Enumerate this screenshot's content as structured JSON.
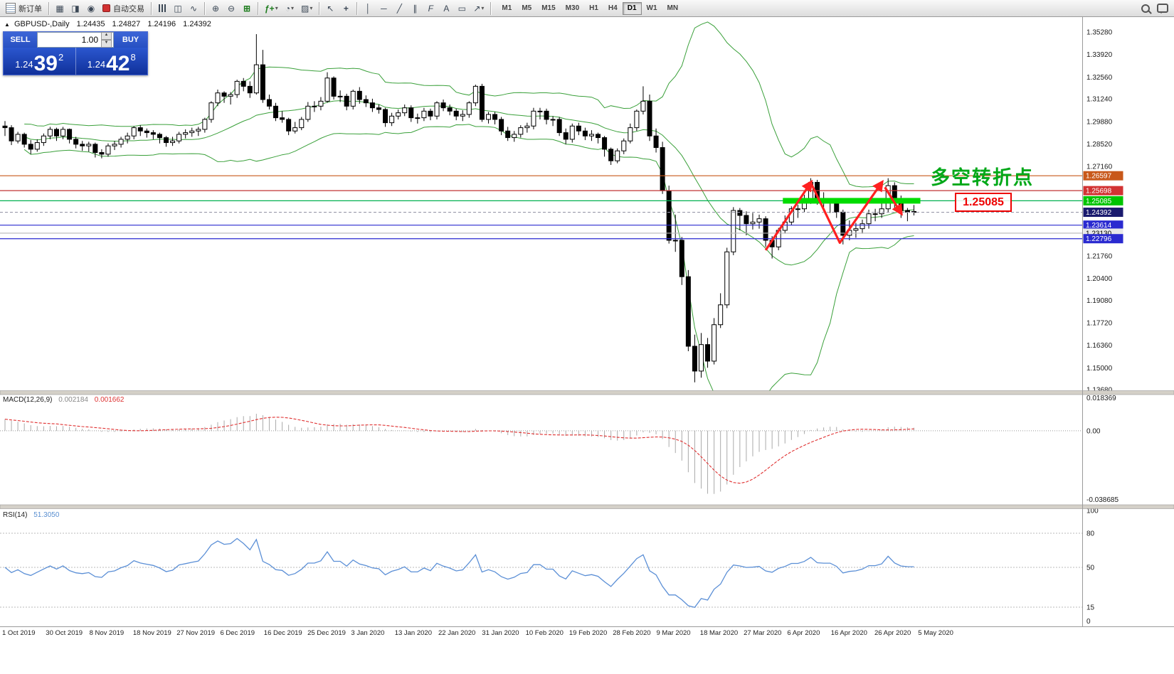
{
  "toolbar": {
    "new_order": "新订单",
    "autotrading": "自动交易",
    "timeframes": [
      "M1",
      "M5",
      "M15",
      "M30",
      "H1",
      "H4",
      "D1",
      "W1",
      "MN"
    ],
    "active_timeframe": "D1"
  },
  "symbol_header": {
    "marker": "▲",
    "symbol": "GBPUSD-,Daily",
    "open": "1.24435",
    "high": "1.24827",
    "low": "1.24196",
    "close": "1.24392"
  },
  "trade_panel": {
    "sell_label": "SELL",
    "buy_label": "BUY",
    "volume": "1.00",
    "sell_price_main": "1.24",
    "sell_price_big": "39",
    "sell_price_pip": "2",
    "buy_price_main": "1.24",
    "buy_price_big": "42",
    "buy_price_pip": "8"
  },
  "annotation": {
    "text": "多空转折点",
    "boxed_price": "1.25085",
    "color": "#00A818",
    "box_color": "#EE0000"
  },
  "price_axis": {
    "tags": [
      {
        "text": "1.26597",
        "bg": "#C8581A",
        "fg": "#FFFFFF",
        "line_color": "#C8581A",
        "line_style": "solid"
      },
      {
        "text": "1.25698",
        "bg": "#D23333",
        "fg": "#FFFFFF",
        "line_color": "#C03333",
        "line_style": "solid"
      },
      {
        "text": "1.25085",
        "bg": "#00C400",
        "fg": "#FFFFFF",
        "line_color": "#00B050",
        "line_style": "solid"
      },
      {
        "text": "1.24392",
        "bg": "#1A1A6E",
        "fg": "#FFFFFF",
        "line_color": "#9999AA",
        "line_style": "dashed"
      },
      {
        "text": "1.23614",
        "bg": "#2A2AD0",
        "fg": "#FFFFFF",
        "line_color": "#2A2AD0",
        "line_style": "solid"
      },
      {
        "text": "1.23130",
        "bg": "#E8E8E8",
        "fg": "#000000",
        "line_color": "#B8B8B8",
        "line_style": "solid"
      },
      {
        "text": "1.22796",
        "bg": "#2A2AD0",
        "fg": "#FFFFFF",
        "line_color": "#2A2AD0",
        "line_style": "solid"
      }
    ]
  },
  "macd_panel": {
    "name": "MACD(12,26,9)",
    "value_main": "0.002184",
    "value_signal": "0.001662",
    "axis": [
      "0.018369",
      "0.00",
      "-0.038685"
    ]
  },
  "rsi_panel": {
    "name": "RSI(14)",
    "value": "51.3050",
    "axis_labels": [
      100,
      80,
      50,
      15,
      0
    ],
    "levels": [
      80,
      50,
      15
    ]
  },
  "chart_data": {
    "type": "candlestick",
    "symbol": "GBPUSD",
    "period": "Daily",
    "ylim": [
      1.1351,
      1.3592
    ],
    "y_tick_labels": [
      "1.35280",
      "1.33920",
      "1.32560",
      "1.31240",
      "1.29880",
      "1.28520",
      "1.27160",
      "1.21760",
      "1.20400",
      "1.19080",
      "1.17720",
      "1.16360",
      "1.15000",
      "1.13680"
    ],
    "date_labels": [
      "1 Oct 2019",
      "30 Oct 2019",
      "8 Nov 2019",
      "18 Nov 2019",
      "27 Nov 2019",
      "6 Dec 2019",
      "16 Dec 2019",
      "25 Dec 2019",
      "3 Jan 2020",
      "13 Jan 2020",
      "22 Jan 2020",
      "31 Jan 2020",
      "10 Feb 2020",
      "19 Feb 2020",
      "28 Feb 2020",
      "9 Mar 2020",
      "18 Mar 2020",
      "27 Mar 2020",
      "6 Apr 2020",
      "16 Apr 2020",
      "26 Apr 2020",
      "5 May 2020"
    ],
    "overlays": [
      {
        "name": "Bollinger Bands(20,2)",
        "color": "#3AA03A"
      }
    ],
    "zone": {
      "price": 1.25085,
      "from_index": 121,
      "to_index": 142,
      "color": "#00DC00"
    },
    "zigzag": {
      "color": "#FF2020",
      "segments": [
        {
          "points": [
            [
              118,
              1.221
            ],
            [
              125,
              1.2618
            ]
          ],
          "arrow": true
        },
        {
          "points": [
            [
              125,
              1.2618
            ],
            [
              129.5,
              1.2255
            ],
            [
              136,
              1.2618
            ]
          ],
          "arrow": true
        },
        {
          "points": [
            [
              136.5,
              1.259
            ],
            [
              139,
              1.2435
            ]
          ],
          "arrow": true
        }
      ]
    },
    "macd": {
      "fast": 12,
      "slow": 26,
      "signal": 9,
      "hist_color": "#AAAAAA",
      "signal_color": "#E03030",
      "range": [
        -0.0405,
        0.019
      ]
    },
    "rsi": {
      "period": 14,
      "color": "#5B8FD6",
      "range": [
        0,
        100
      ]
    },
    "candles": [
      [
        1.296,
        1.299,
        1.29,
        1.295
      ],
      [
        1.295,
        1.2965,
        1.2845,
        1.287
      ],
      [
        1.287,
        1.2925,
        1.2855,
        1.291
      ],
      [
        1.291,
        1.292,
        1.283,
        1.285
      ],
      [
        1.285,
        1.2875,
        1.279,
        1.282
      ],
      [
        1.282,
        1.288,
        1.2805,
        1.286
      ],
      [
        1.286,
        1.2915,
        1.284,
        1.29
      ],
      [
        1.29,
        1.2955,
        1.288,
        1.294
      ],
      [
        1.294,
        1.295,
        1.287,
        1.29
      ],
      [
        1.29,
        1.2955,
        1.288,
        1.294
      ],
      [
        1.294,
        1.2945,
        1.2855,
        1.288
      ],
      [
        1.288,
        1.2895,
        1.2825,
        1.285
      ],
      [
        1.285,
        1.287,
        1.281,
        1.284
      ],
      [
        1.284,
        1.2865,
        1.2805,
        1.285
      ],
      [
        1.285,
        1.286,
        1.277,
        1.28
      ],
      [
        1.28,
        1.282,
        1.2765,
        1.279
      ],
      [
        1.279,
        1.2855,
        1.2775,
        1.284
      ],
      [
        1.284,
        1.287,
        1.2815,
        1.285
      ],
      [
        1.285,
        1.2895,
        1.283,
        1.288
      ],
      [
        1.288,
        1.292,
        1.2855,
        1.29
      ],
      [
        1.29,
        1.296,
        1.288,
        1.295
      ],
      [
        1.295,
        1.2965,
        1.29,
        1.293
      ],
      [
        1.293,
        1.2945,
        1.289,
        1.292
      ],
      [
        1.292,
        1.2935,
        1.288,
        1.291
      ],
      [
        1.291,
        1.292,
        1.2855,
        1.289
      ],
      [
        1.289,
        1.29,
        1.2835,
        1.286
      ],
      [
        1.286,
        1.2895,
        1.284,
        1.287
      ],
      [
        1.287,
        1.2925,
        1.2855,
        1.291
      ],
      [
        1.291,
        1.294,
        1.2885,
        1.292
      ],
      [
        1.292,
        1.295,
        1.2895,
        1.293
      ],
      [
        1.293,
        1.2955,
        1.29,
        1.294
      ],
      [
        1.294,
        1.301,
        1.292,
        1.3
      ],
      [
        1.3,
        1.311,
        1.298,
        1.31
      ],
      [
        1.31,
        1.318,
        1.308,
        1.316
      ],
      [
        1.316,
        1.317,
        1.31,
        1.314
      ],
      [
        1.314,
        1.3165,
        1.309,
        1.315
      ],
      [
        1.315,
        1.324,
        1.313,
        1.323
      ],
      [
        1.323,
        1.325,
        1.317,
        1.32
      ],
      [
        1.32,
        1.323,
        1.313,
        1.316
      ],
      [
        1.316,
        1.3515,
        1.315,
        1.333
      ],
      [
        1.333,
        1.342,
        1.31,
        1.312
      ],
      [
        1.312,
        1.315,
        1.306,
        1.308
      ],
      [
        1.308,
        1.31,
        1.299,
        1.301
      ],
      [
        1.301,
        1.305,
        1.298,
        1.3
      ],
      [
        1.3,
        1.301,
        1.2905,
        1.293
      ],
      [
        1.293,
        1.2985,
        1.2915,
        1.295
      ],
      [
        1.295,
        1.3015,
        1.2935,
        1.3
      ],
      [
        1.3,
        1.3105,
        1.2985,
        1.308
      ],
      [
        1.308,
        1.311,
        1.3045,
        1.308
      ],
      [
        1.308,
        1.3135,
        1.3055,
        1.311
      ],
      [
        1.311,
        1.3285,
        1.31,
        1.325
      ],
      [
        1.325,
        1.326,
        1.312,
        1.314
      ],
      [
        1.314,
        1.3175,
        1.3105,
        1.314
      ],
      [
        1.314,
        1.3155,
        1.3055,
        1.308
      ],
      [
        1.308,
        1.318,
        1.306,
        1.317
      ],
      [
        1.317,
        1.3195,
        1.3095,
        1.312
      ],
      [
        1.312,
        1.3145,
        1.3075,
        1.31
      ],
      [
        1.31,
        1.3125,
        1.3045,
        1.307
      ],
      [
        1.307,
        1.309,
        1.3035,
        1.306
      ],
      [
        1.306,
        1.307,
        1.2955,
        1.298
      ],
      [
        1.298,
        1.304,
        1.296,
        1.302
      ],
      [
        1.302,
        1.306,
        1.3,
        1.304
      ],
      [
        1.304,
        1.309,
        1.302,
        1.307
      ],
      [
        1.307,
        1.3085,
        1.2985,
        1.301
      ],
      [
        1.301,
        1.3035,
        1.2975,
        1.301
      ],
      [
        1.301,
        1.307,
        1.299,
        1.305
      ],
      [
        1.305,
        1.3065,
        1.2995,
        1.302
      ],
      [
        1.302,
        1.311,
        1.3,
        1.31
      ],
      [
        1.31,
        1.312,
        1.305,
        1.307
      ],
      [
        1.307,
        1.309,
        1.3025,
        1.305
      ],
      [
        1.305,
        1.3065,
        1.2995,
        1.302
      ],
      [
        1.302,
        1.3055,
        1.299,
        1.303
      ],
      [
        1.303,
        1.311,
        1.301,
        1.31
      ],
      [
        1.31,
        1.321,
        1.308,
        1.32
      ],
      [
        1.32,
        1.3215,
        1.2985,
        1.3
      ],
      [
        1.3,
        1.3045,
        1.2975,
        1.303
      ],
      [
        1.303,
        1.3045,
        1.297,
        1.3
      ],
      [
        1.3,
        1.3015,
        1.2905,
        1.293
      ],
      [
        1.293,
        1.2955,
        1.287,
        1.289
      ],
      [
        1.289,
        1.293,
        1.2865,
        1.291
      ],
      [
        1.291,
        1.2965,
        1.289,
        1.295
      ],
      [
        1.295,
        1.298,
        1.292,
        1.296
      ],
      [
        1.296,
        1.307,
        1.294,
        1.305
      ],
      [
        1.305,
        1.307,
        1.3,
        1.305
      ],
      [
        1.305,
        1.3065,
        1.297,
        1.3
      ],
      [
        1.3,
        1.302,
        1.296,
        1.3
      ],
      [
        1.3,
        1.3015,
        1.29,
        1.292
      ],
      [
        1.292,
        1.2945,
        1.285,
        1.288
      ],
      [
        1.288,
        1.2975,
        1.286,
        1.296
      ],
      [
        1.296,
        1.298,
        1.2905,
        1.293
      ],
      [
        1.293,
        1.295,
        1.2875,
        1.29
      ],
      [
        1.29,
        1.2935,
        1.287,
        1.291
      ],
      [
        1.291,
        1.292,
        1.2855,
        1.289
      ],
      [
        1.289,
        1.29,
        1.2775,
        1.282
      ],
      [
        1.282,
        1.283,
        1.2725,
        1.275
      ],
      [
        1.275,
        1.2825,
        1.2735,
        1.281
      ],
      [
        1.281,
        1.2885,
        1.279,
        1.287
      ],
      [
        1.287,
        1.2975,
        1.2855,
        1.295
      ],
      [
        1.295,
        1.306,
        1.293,
        1.305
      ],
      [
        1.305,
        1.32,
        1.303,
        1.311
      ],
      [
        1.311,
        1.315,
        1.287,
        1.29
      ],
      [
        1.29,
        1.2945,
        1.28,
        1.283
      ],
      [
        1.283,
        1.2865,
        1.255,
        1.257
      ],
      [
        1.257,
        1.26,
        1.225,
        1.227
      ],
      [
        1.227,
        1.2425,
        1.22,
        1.227
      ],
      [
        1.227,
        1.229,
        1.2,
        1.205
      ],
      [
        1.205,
        1.209,
        1.16,
        1.163
      ],
      [
        1.163,
        1.17,
        1.1412,
        1.148
      ],
      [
        1.148,
        1.171,
        1.144,
        1.164
      ],
      [
        1.164,
        1.168,
        1.15,
        1.154
      ],
      [
        1.154,
        1.18,
        1.152,
        1.176
      ],
      [
        1.176,
        1.195,
        1.174,
        1.188
      ],
      [
        1.188,
        1.2225,
        1.186,
        1.22
      ],
      [
        1.22,
        1.247,
        1.218,
        1.245
      ],
      [
        1.245,
        1.2465,
        1.233,
        1.242
      ],
      [
        1.242,
        1.2445,
        1.23,
        1.237
      ],
      [
        1.237,
        1.2435,
        1.2335,
        1.238
      ],
      [
        1.238,
        1.2425,
        1.234,
        1.24
      ],
      [
        1.24,
        1.2415,
        1.223,
        1.227
      ],
      [
        1.227,
        1.2295,
        1.216,
        1.223
      ],
      [
        1.223,
        1.2345,
        1.221,
        1.233
      ],
      [
        1.233,
        1.242,
        1.231,
        1.238
      ],
      [
        1.238,
        1.2475,
        1.236,
        1.246
      ],
      [
        1.246,
        1.2485,
        1.2405,
        1.246
      ],
      [
        1.246,
        1.2545,
        1.244,
        1.251
      ],
      [
        1.251,
        1.2645,
        1.249,
        1.262
      ],
      [
        1.262,
        1.2635,
        1.2485,
        1.251
      ],
      [
        1.251,
        1.256,
        1.247,
        1.25
      ],
      [
        1.25,
        1.2525,
        1.2435,
        1.25
      ],
      [
        1.25,
        1.251,
        1.2405,
        1.244
      ],
      [
        1.244,
        1.2455,
        1.2245,
        1.23
      ],
      [
        1.23,
        1.239,
        1.227,
        1.233
      ],
      [
        1.233,
        1.2375,
        1.2285,
        1.234
      ],
      [
        1.234,
        1.2395,
        1.231,
        1.237
      ],
      [
        1.237,
        1.2455,
        1.234,
        1.243
      ],
      [
        1.243,
        1.246,
        1.2385,
        1.243
      ],
      [
        1.243,
        1.251,
        1.2405,
        1.246
      ],
      [
        1.246,
        1.2645,
        1.244,
        1.26
      ],
      [
        1.26,
        1.262,
        1.245,
        1.25
      ],
      [
        1.25,
        1.254,
        1.2405,
        1.245
      ],
      [
        1.245,
        1.2465,
        1.2385,
        1.244
      ],
      [
        1.2444,
        1.2483,
        1.242,
        1.2439
      ]
    ]
  }
}
